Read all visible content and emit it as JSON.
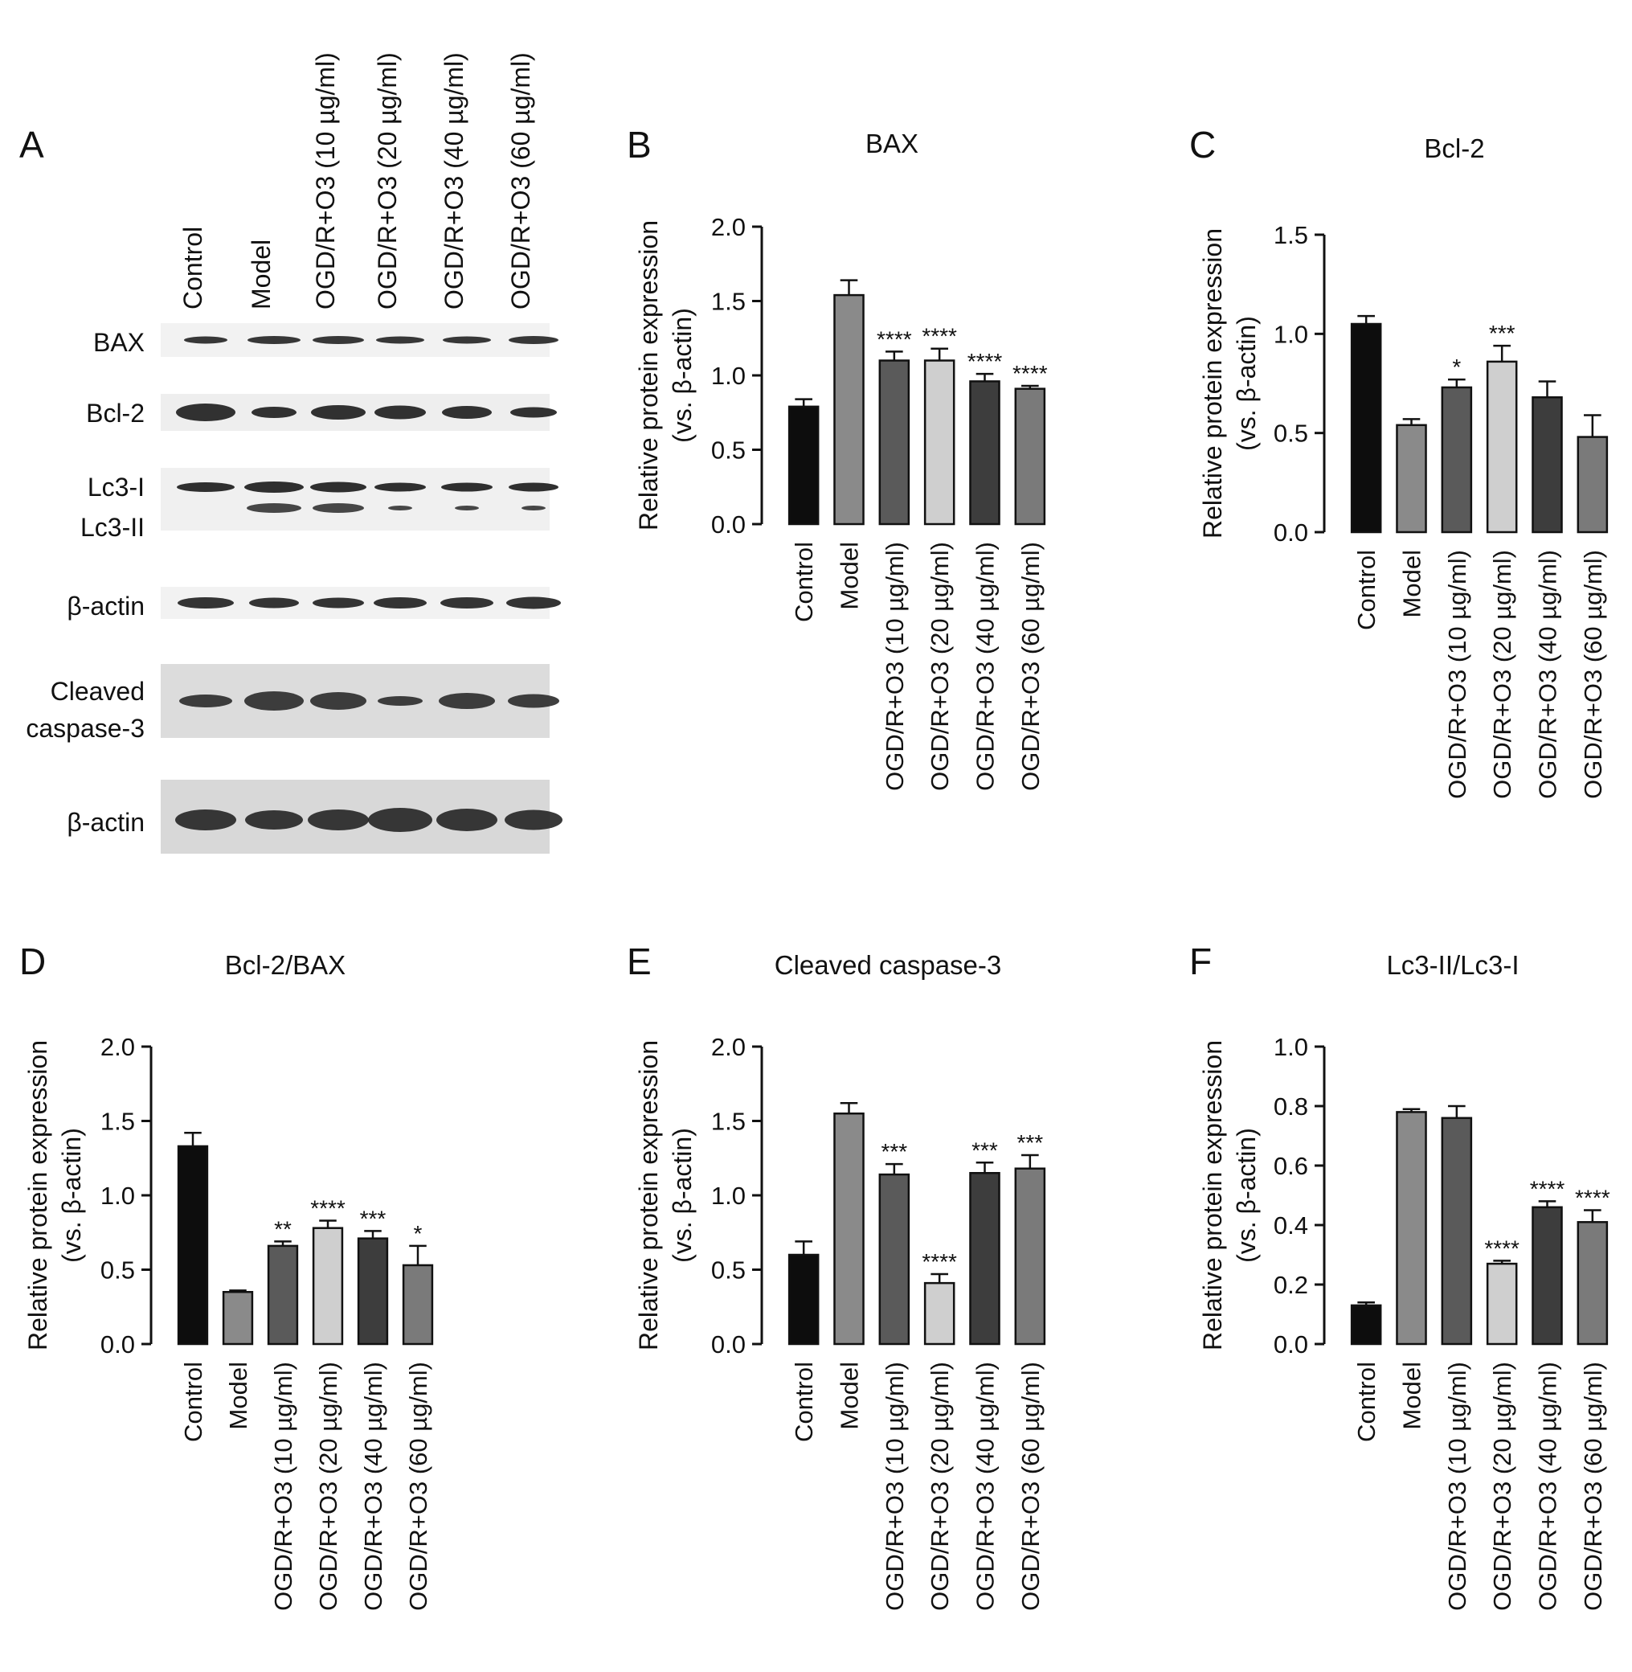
{
  "panel_a": {
    "letter": "A",
    "lanes": [
      "Control",
      "Model",
      "OGD/R+O3 (10 µg/ml)",
      "OGD/R+O3 (20 µg/ml)",
      "OGD/R+O3 (40 µg/ml)",
      "OGD/R+O3 (60 µg/ml)"
    ],
    "blot_rows": [
      {
        "labels": [
          "BAX"
        ]
      },
      {
        "labels": [
          "Bcl-2"
        ]
      },
      {
        "labels": [
          "Lc3-I",
          "Lc3-II"
        ]
      },
      {
        "labels": [
          "β-actin"
        ]
      },
      {
        "labels": [
          "Cleaved",
          "caspase-3"
        ]
      },
      {
        "labels": [
          "β-actin"
        ]
      }
    ]
  },
  "chart_data": [
    {
      "panel": "B",
      "type": "bar",
      "title": "BAX",
      "ylabel": [
        "Relative protein expression",
        "(vs. β-actin)"
      ],
      "ylim": [
        0,
        2.0
      ],
      "yticks": [
        "0.0",
        "0.5",
        "1.0",
        "1.5",
        "2.0"
      ],
      "categories": [
        "Control",
        "Model",
        "OGD/R+O3 (10 µg/ml)",
        "OGD/R+O3 (20 µg/ml)",
        "OGD/R+O3 (40 µg/ml)",
        "OGD/R+O3 (60 µg/ml)"
      ],
      "values": [
        0.79,
        1.54,
        1.1,
        1.1,
        0.96,
        0.91
      ],
      "errors": [
        0.05,
        0.1,
        0.06,
        0.08,
        0.05,
        0.02
      ],
      "significance": [
        "",
        "",
        "****",
        "****",
        "****",
        "****"
      ]
    },
    {
      "panel": "C",
      "type": "bar",
      "title": "Bcl-2",
      "ylabel": [
        "Relative protein expression",
        "(vs. β-actin)"
      ],
      "ylim": [
        0,
        1.5
      ],
      "yticks": [
        "0.0",
        "0.5",
        "1.0",
        "1.5"
      ],
      "categories": [
        "Control",
        "Model",
        "OGD/R+O3 (10 µg/ml)",
        "OGD/R+O3 (20 µg/ml)",
        "OGD/R+O3 (40 µg/ml)",
        "OGD/R+O3 (60 µg/ml)"
      ],
      "values": [
        1.05,
        0.54,
        0.73,
        0.86,
        0.68,
        0.48
      ],
      "errors": [
        0.04,
        0.03,
        0.04,
        0.08,
        0.08,
        0.11
      ],
      "significance": [
        "",
        "",
        "*",
        "***",
        "",
        ""
      ]
    },
    {
      "panel": "D",
      "type": "bar",
      "title": "Bcl-2/BAX",
      "ylabel": [
        "Relative protein expression",
        "(vs. β-actin)"
      ],
      "ylim": [
        0,
        2.0
      ],
      "yticks": [
        "0.0",
        "0.5",
        "1.0",
        "1.5",
        "2.0"
      ],
      "categories": [
        "Control",
        "Model",
        "OGD/R+O3 (10 µg/ml)",
        "OGD/R+O3 (20 µg/ml)",
        "OGD/R+O3 (40 µg/ml)",
        "OGD/R+O3 (60 µg/ml)"
      ],
      "values": [
        1.33,
        0.35,
        0.66,
        0.78,
        0.71,
        0.53
      ],
      "errors": [
        0.09,
        0.01,
        0.03,
        0.05,
        0.05,
        0.13
      ],
      "significance": [
        "",
        "",
        "**",
        "****",
        "***",
        "*"
      ]
    },
    {
      "panel": "E",
      "type": "bar",
      "title": "Cleaved caspase-3",
      "ylabel": [
        "Relative protein expression",
        "(vs. β-actin)"
      ],
      "ylim": [
        0,
        2.0
      ],
      "yticks": [
        "0.0",
        "0.5",
        "1.0",
        "1.5",
        "2.0"
      ],
      "categories": [
        "Control",
        "Model",
        "OGD/R+O3 (10 µg/ml)",
        "OGD/R+O3 (20 µg/ml)",
        "OGD/R+O3 (40 µg/ml)",
        "OGD/R+O3 (60 µg/ml)"
      ],
      "values": [
        0.6,
        1.55,
        1.14,
        0.41,
        1.15,
        1.18
      ],
      "errors": [
        0.09,
        0.07,
        0.07,
        0.06,
        0.07,
        0.09
      ],
      "significance": [
        "",
        "",
        "***",
        "****",
        "***",
        "***"
      ]
    },
    {
      "panel": "F",
      "type": "bar",
      "title": "Lc3-II/Lc3-I",
      "ylabel": [
        "Relative protein expression",
        "(vs. β-actin)"
      ],
      "ylim": [
        0,
        1.0
      ],
      "yticks": [
        "0.0",
        "0.2",
        "0.4",
        "0.6",
        "0.8",
        "1.0"
      ],
      "categories": [
        "Control",
        "Model",
        "OGD/R+O3 (10 µg/ml)",
        "OGD/R+O3 (20 µg/ml)",
        "OGD/R+O3 (40 µg/ml)",
        "OGD/R+O3 (60 µg/ml)"
      ],
      "values": [
        0.13,
        0.78,
        0.76,
        0.27,
        0.46,
        0.41
      ],
      "errors": [
        0.01,
        0.01,
        0.04,
        0.01,
        0.02,
        0.04
      ],
      "significance": [
        "",
        "",
        "",
        "****",
        "****",
        "****"
      ]
    }
  ],
  "bar_colors": [
    "#0d0d0d",
    "#8a8a8a",
    "#5a5a5a",
    "#cfcfcf",
    "#3d3d3d",
    "#7a7a7a"
  ]
}
